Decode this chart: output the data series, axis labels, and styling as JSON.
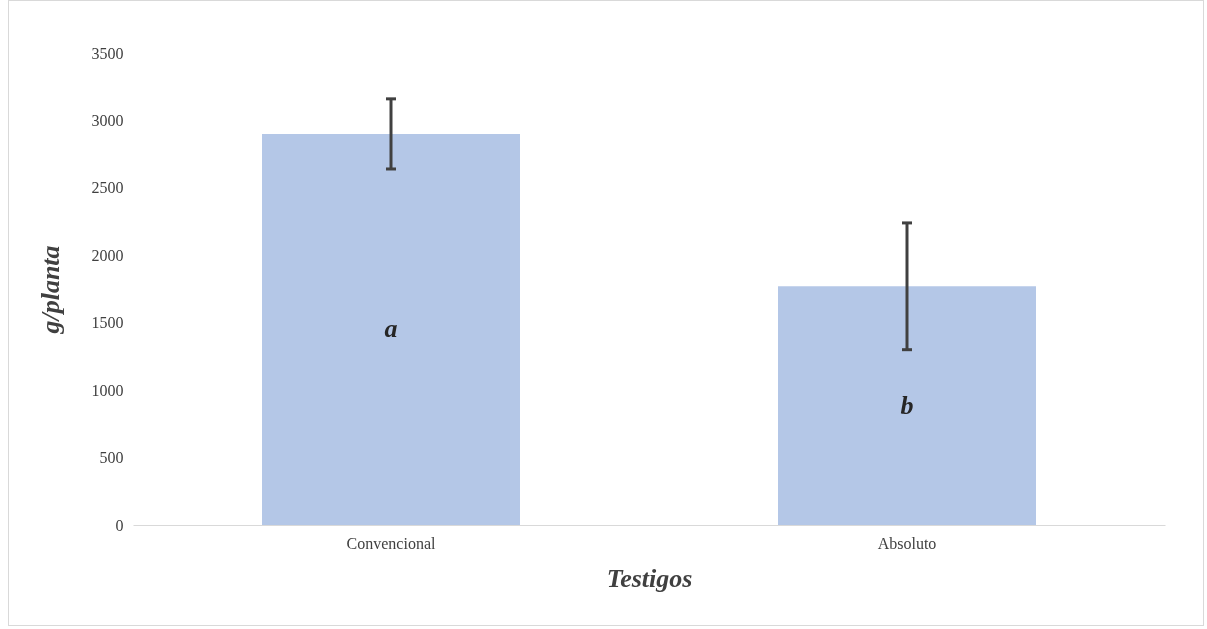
{
  "chart_data": {
    "type": "bar",
    "xlabel": "Testigos",
    "ylabel": "g/planta",
    "categories": [
      "Convencional",
      "Absoluto"
    ],
    "values": [
      2900,
      1770
    ],
    "errors": [
      260,
      470
    ],
    "color": "#b4c7e7",
    "ylim": [
      0,
      3500
    ],
    "yticks": [
      0,
      500,
      1000,
      1500,
      2000,
      2500,
      3000,
      3500
    ],
    "annotations": [
      "a",
      "b"
    ]
  }
}
